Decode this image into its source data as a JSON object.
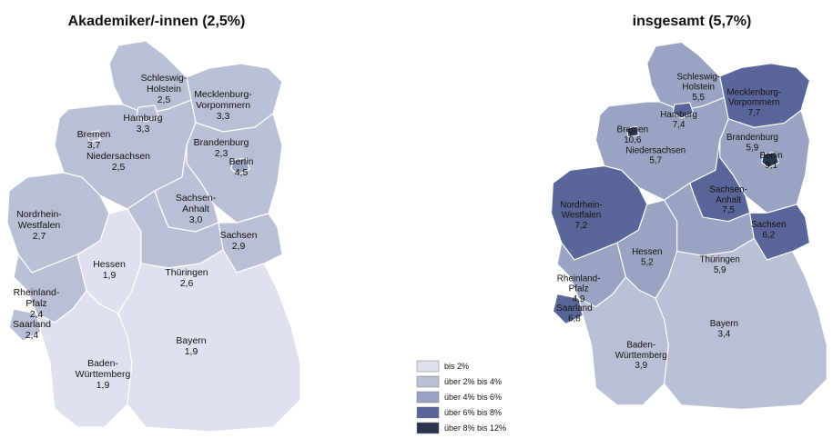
{
  "maps": [
    {
      "title": "Akademiker/-innen  (2,5%)",
      "regions": [
        {
          "name": [
            "Schleswig-",
            "Holstein"
          ],
          "value": 2.5,
          "label": "2,5"
        },
        {
          "name": [
            "Mecklenburg-",
            "Vorpommern"
          ],
          "value": 3.3,
          "label": "3,3"
        },
        {
          "name": [
            "Niedersachsen"
          ],
          "value": 2.5,
          "label": "2,5"
        },
        {
          "name": [
            "Brandenburg"
          ],
          "value": 2.3,
          "label": "2,3"
        },
        {
          "name": [
            "Sachsen-",
            "Anhalt"
          ],
          "value": 3.0,
          "label": "3,0"
        },
        {
          "name": [
            "Nordrhein-",
            "Westfalen"
          ],
          "value": 2.7,
          "label": "2,7"
        },
        {
          "name": [
            "Hessen"
          ],
          "value": 1.9,
          "label": "1,9"
        },
        {
          "name": [
            "Thüringen"
          ],
          "value": 2.6,
          "label": "2,6"
        },
        {
          "name": [
            "Sachsen"
          ],
          "value": 2.9,
          "label": "2,9"
        },
        {
          "name": [
            "Rheinland-",
            "Pfalz"
          ],
          "value": 2.4,
          "label": "2,4"
        },
        {
          "name": [
            "Saarland"
          ],
          "value": 2.4,
          "label": "2,4"
        },
        {
          "name": [
            "Baden-",
            "Württemberg"
          ],
          "value": 1.9,
          "label": "1,9"
        },
        {
          "name": [
            "Bayern"
          ],
          "value": 1.9,
          "label": "1,9"
        },
        {
          "name": [
            "Hamburg"
          ],
          "value": 3.3,
          "label": "3,3"
        },
        {
          "name": [
            "Bremen"
          ],
          "value": 3.7,
          "label": "3,7"
        },
        {
          "name": [
            "Berlin"
          ],
          "value": 4.5,
          "label": "4,5"
        }
      ]
    },
    {
      "title": "insgesamt (5,7%)",
      "regions": [
        {
          "name": [
            "Schleswig-",
            "Holstein"
          ],
          "value": 5.5,
          "label": "5,5"
        },
        {
          "name": [
            "Mecklenburg-",
            "Vorpommern"
          ],
          "value": 7.7,
          "label": "7,7"
        },
        {
          "name": [
            "Niedersachsen"
          ],
          "value": 5.7,
          "label": "5,7"
        },
        {
          "name": [
            "Brandenburg"
          ],
          "value": 5.9,
          "label": "5,9"
        },
        {
          "name": [
            "Sachsen-",
            "Anhalt"
          ],
          "value": 7.5,
          "label": "7,5"
        },
        {
          "name": [
            "Nordrhein-",
            "Westfalen"
          ],
          "value": 7.2,
          "label": "7,2"
        },
        {
          "name": [
            "Hessen"
          ],
          "value": 5.2,
          "label": "5,2"
        },
        {
          "name": [
            "Thüringen"
          ],
          "value": 5.9,
          "label": "5,9"
        },
        {
          "name": [
            "Sachsen"
          ],
          "value": 6.2,
          "label": "6,2"
        },
        {
          "name": [
            "Rheinland-",
            "Pfalz"
          ],
          "value": 4.9,
          "label": "4,9"
        },
        {
          "name": [
            "Saarland"
          ],
          "value": 6.8,
          "label": "6,8"
        },
        {
          "name": [
            "Baden-",
            "Württemberg"
          ],
          "value": 3.9,
          "label": "3,9"
        },
        {
          "name": [
            "Bayern"
          ],
          "value": 3.4,
          "label": "3,4"
        },
        {
          "name": [
            "Hamburg"
          ],
          "value": 7.4,
          "label": "7,4"
        },
        {
          "name": [
            "Bremen"
          ],
          "value": 10.6,
          "label": "10,6"
        },
        {
          "name": [
            "Berlin"
          ],
          "value": 9.1,
          "label": "9,1"
        }
      ]
    }
  ],
  "legend": [
    {
      "label": "bis 2%",
      "max": 2,
      "color": "#dde2ee"
    },
    {
      "label": "über 2% bis 4%",
      "max": 4,
      "color": "#b9bfd4"
    },
    {
      "label": "über 4% bis 6%",
      "max": 6,
      "color": "#9aa3c2"
    },
    {
      "label": "über 6% bis 8%",
      "max": 8,
      "color": "#5a6699"
    },
    {
      "label": "über 8% bis 12%",
      "max": 12,
      "color": "#2c3550"
    }
  ]
}
